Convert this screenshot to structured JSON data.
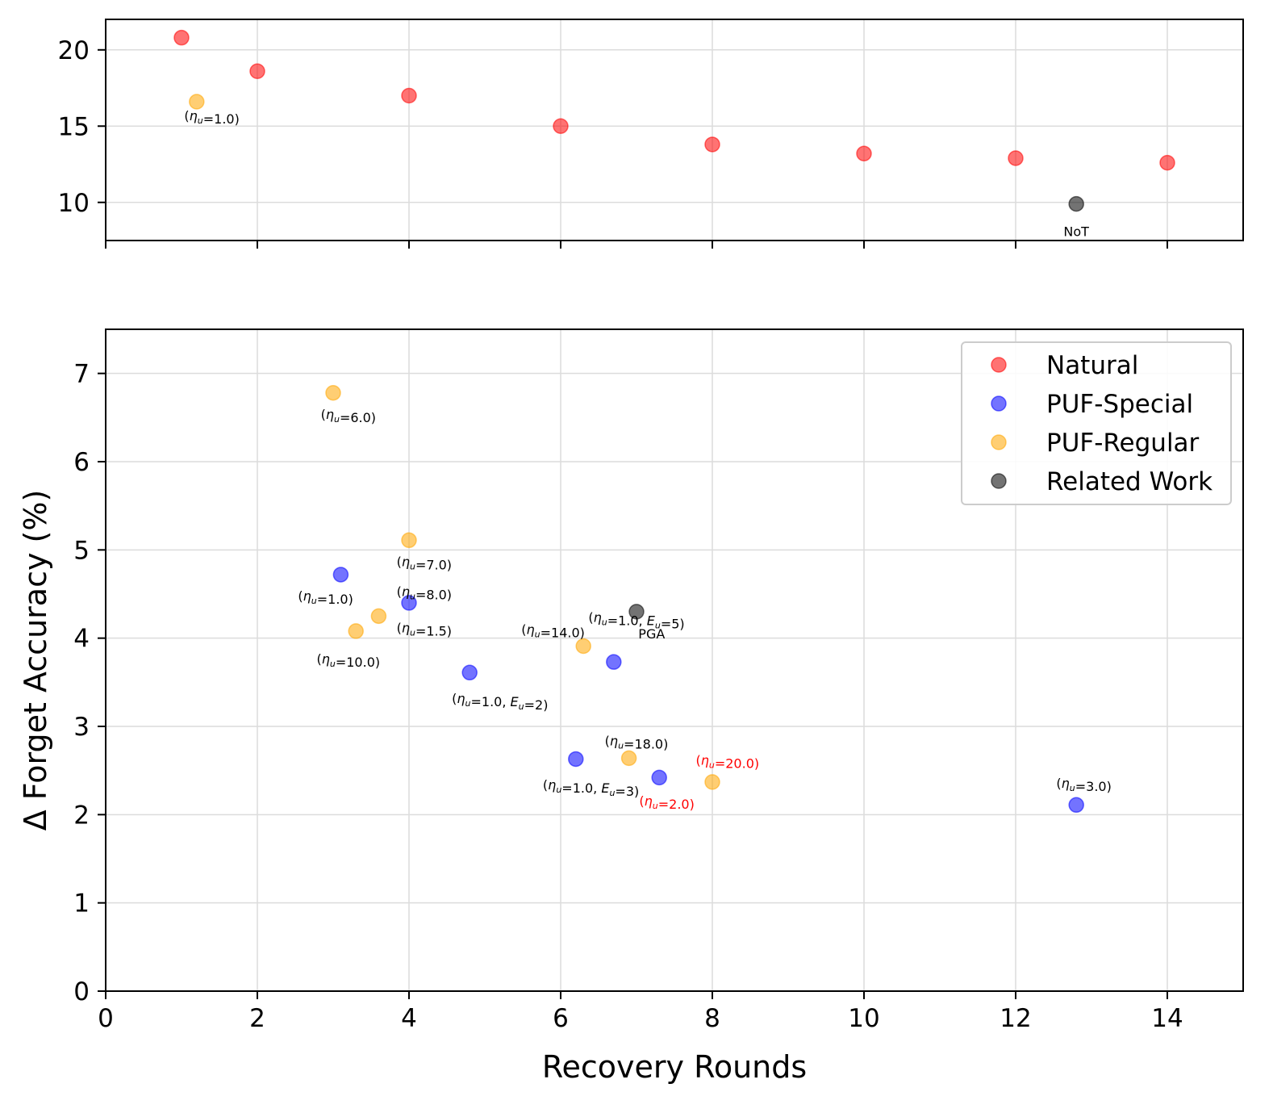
{
  "chart_data": {
    "type": "scatter",
    "xlabel": "Recovery Rounds",
    "ylabel": "Δ Forget Accuracy (%)",
    "xlim": [
      0,
      15
    ],
    "x_ticks": [
      0,
      2,
      4,
      6,
      8,
      10,
      12,
      14
    ],
    "grid": true,
    "legend_position": "top-right",
    "colors": {
      "Natural": "#ff0000",
      "PUF-Special": "#0000ff",
      "PUF-Regular": "#ffa500",
      "Related Work": "#000000"
    },
    "legend": [
      "Natural",
      "PUF-Special",
      "PUF-Regular",
      "Related Work"
    ],
    "panels": [
      {
        "id": "top",
        "ylim": [
          7.5,
          22
        ],
        "y_ticks": [
          10,
          15,
          20
        ],
        "show_x_tick_labels": false,
        "series": [
          {
            "name": "Natural",
            "points": [
              {
                "x": 1,
                "y": 20.8
              },
              {
                "x": 2,
                "y": 18.6
              },
              {
                "x": 4,
                "y": 17.0
              },
              {
                "x": 6,
                "y": 15.0
              },
              {
                "x": 8,
                "y": 13.8
              },
              {
                "x": 10,
                "y": 13.2
              },
              {
                "x": 12,
                "y": 12.9
              },
              {
                "x": 14,
                "y": 12.6
              }
            ]
          },
          {
            "name": "PUF-Regular",
            "points": [
              {
                "x": 1.2,
                "y": 16.6,
                "label": "(ηu=1.0)",
                "lx": 1.4,
                "ly": 15.7
              }
            ]
          },
          {
            "name": "Related Work",
            "points": [
              {
                "x": 12.8,
                "y": 9.9,
                "label": "NoT",
                "lx": 12.8,
                "ly": 8.1
              }
            ]
          }
        ]
      },
      {
        "id": "bottom",
        "ylim": [
          0,
          7.5
        ],
        "y_ticks": [
          0,
          1,
          2,
          3,
          4,
          5,
          6,
          7
        ],
        "show_x_tick_labels": true,
        "series": [
          {
            "name": "PUF-Special",
            "points": [
              {
                "x": 3.1,
                "y": 4.72,
                "label": "(ηu=1.0)",
                "lx": 2.9,
                "ly": 4.48
              },
              {
                "x": 4.0,
                "y": 4.4,
                "label": "(ηu=8.0)",
                "lx": 4.2,
                "ly": 4.53
              },
              {
                "x": 4.8,
                "y": 3.61,
                "label": "(ηu=1.0, Eu=2)",
                "lx": 5.2,
                "ly": 3.32
              },
              {
                "x": 6.7,
                "y": 3.73,
                "label": "(ηu=1.0, Eu=5)",
                "lx": 7.0,
                "ly": 4.24
              },
              {
                "x": 6.2,
                "y": 2.63,
                "label": "(ηu=1.0, Eu=3)",
                "lx": 6.4,
                "ly": 2.34
              },
              {
                "x": 7.3,
                "y": 2.42,
                "label": "(ηu=2.0)",
                "lx": 7.4,
                "ly": 2.16,
                "red": true
              },
              {
                "x": 12.8,
                "y": 2.11,
                "label": "(ηu=3.0)",
                "lx": 12.9,
                "ly": 2.36
              }
            ]
          },
          {
            "name": "PUF-Regular",
            "points": [
              {
                "x": 3.0,
                "y": 6.78,
                "label": "(ηu=6.0)",
                "lx": 3.2,
                "ly": 6.54
              },
              {
                "x": 4.0,
                "y": 5.11,
                "label": "(ηu=7.0)",
                "lx": 4.2,
                "ly": 4.87
              },
              {
                "x": 3.6,
                "y": 4.25,
                "label": "(ηu=1.5)",
                "lx": 4.2,
                "ly": 4.12
              },
              {
                "x": 3.3,
                "y": 4.08,
                "label": "(ηu=10.0)",
                "lx": 3.2,
                "ly": 3.77
              },
              {
                "x": 6.3,
                "y": 3.91,
                "label": "(ηu=14.0)",
                "lx": 5.9,
                "ly": 4.1
              },
              {
                "x": 6.9,
                "y": 2.64,
                "label": "(ηu=18.0)",
                "lx": 7.0,
                "ly": 2.84
              },
              {
                "x": 8.0,
                "y": 2.37,
                "label": "(ηu=20.0)",
                "lx": 8.2,
                "ly": 2.62,
                "red": true
              }
            ]
          },
          {
            "name": "Related Work",
            "points": [
              {
                "x": 7.0,
                "y": 4.3,
                "label": "PGA",
                "lx": 7.2,
                "ly": 4.05
              }
            ]
          }
        ]
      }
    ]
  }
}
